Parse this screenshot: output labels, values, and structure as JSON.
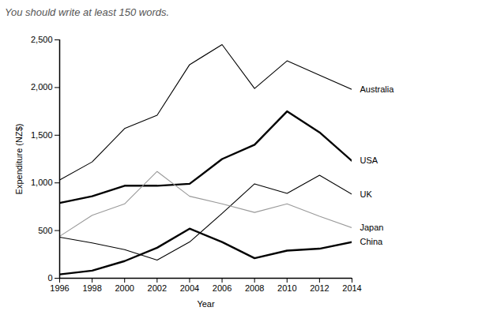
{
  "chart_data": {
    "type": "line",
    "title": "You should write at least 150 words.",
    "x_label": "Year",
    "y_label": "Expenditure (NZ$)",
    "x": [
      1996,
      1998,
      2000,
      2002,
      2004,
      2006,
      2008,
      2010,
      2012,
      2014
    ],
    "xlim": [
      1996,
      2014
    ],
    "xticks": [
      1996,
      1998,
      2000,
      2002,
      2004,
      2006,
      2008,
      2010,
      2012,
      2014
    ],
    "ylim": [
      0,
      2500
    ],
    "yticks": [
      0,
      500,
      {
        "value": 1000,
        "label": "1,000"
      },
      {
        "value": 1500,
        "label": "1,500"
      },
      {
        "value": 2000,
        "label": "2,000"
      },
      {
        "value": 2500,
        "label": "2,500"
      }
    ],
    "grid": false,
    "series": [
      {
        "name": "Australia",
        "color": "#000000",
        "line_style": "thin",
        "values": [
          1030,
          1220,
          1570,
          1710,
          2240,
          2450,
          1990,
          2280,
          2130,
          1980
        ]
      },
      {
        "name": "USA",
        "color": "#000000",
        "line_style": "thick",
        "values": [
          790,
          860,
          970,
          970,
          990,
          1250,
          1400,
          1750,
          1530,
          1230
        ]
      },
      {
        "name": "UK",
        "color": "#000000",
        "line_style": "thin",
        "values": [
          430,
          370,
          300,
          190,
          380,
          680,
          990,
          890,
          1080,
          880
        ]
      },
      {
        "name": "Japan",
        "color": "#999999",
        "line_style": "thin",
        "values": [
          440,
          660,
          780,
          1120,
          860,
          780,
          690,
          780,
          650,
          530
        ]
      },
      {
        "name": "China",
        "color": "#000000",
        "line_style": "thick",
        "values": [
          40,
          80,
          180,
          320,
          520,
          380,
          210,
          290,
          310,
          380
        ]
      }
    ]
  }
}
